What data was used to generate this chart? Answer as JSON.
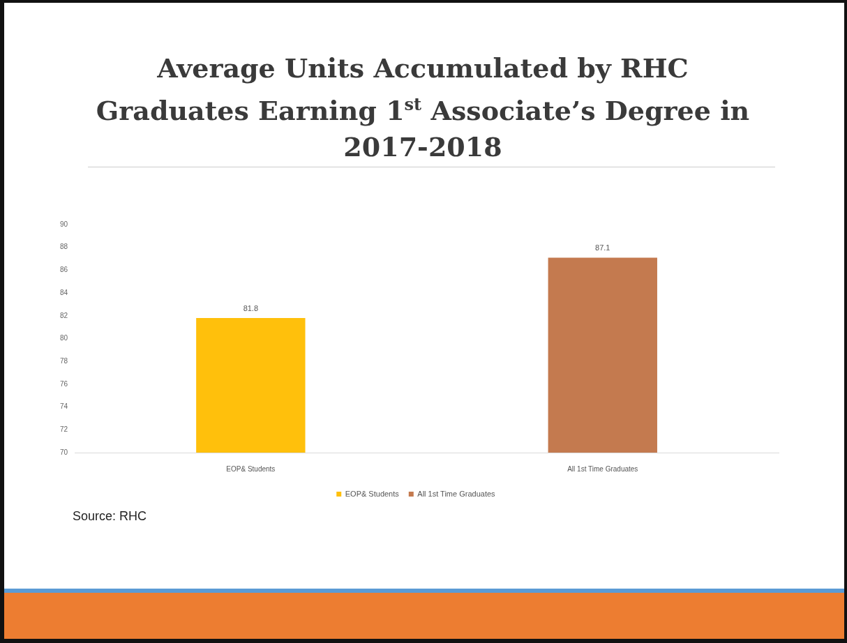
{
  "chart_data": {
    "type": "bar",
    "title": "Average Units Accumulated by RHC Graduates Earning 1$^{st}$ Associate’s Degree in 2017-2018",
    "categories": [
      "EOP& Students",
      "All 1st Time Graduates"
    ],
    "series": [
      {
        "name": "EOP& Students",
        "color": "#ffc00c",
        "values": [
          81.8,
          null
        ]
      },
      {
        "name": "All 1st Time Graduates",
        "color": "#c47a4f",
        "values": [
          null,
          87.1
        ]
      }
    ],
    "ylim": [
      70,
      90
    ],
    "yticks": [
      70,
      72,
      74,
      76,
      78,
      80,
      82,
      84,
      86,
      88,
      90
    ],
    "grid": false,
    "legend": "bottom",
    "data_labels": true,
    "annotations": [
      "Source: RHC"
    ]
  }
}
